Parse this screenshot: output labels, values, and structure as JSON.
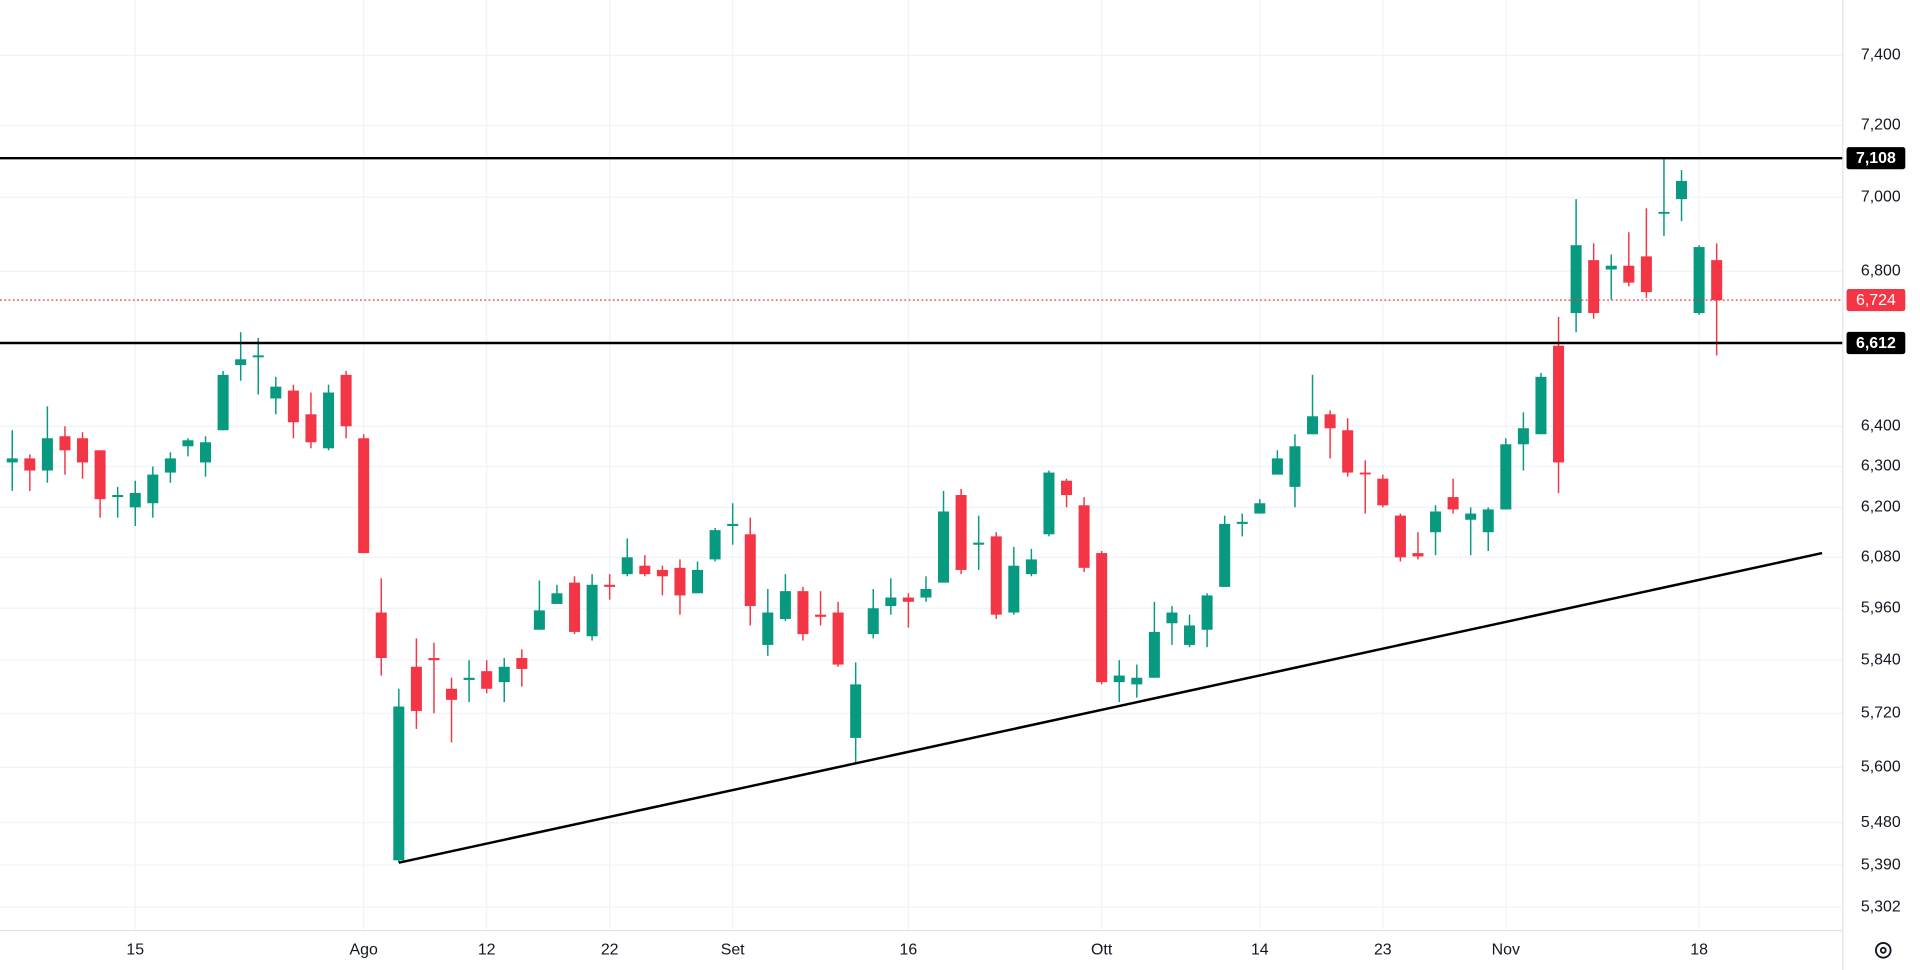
{
  "chart_data": {
    "type": "candlestick",
    "log": true,
    "grid": true,
    "up_color": "#089981",
    "down_color": "#f23645",
    "categories": [
      null,
      null,
      null,
      null,
      null,
      null,
      null,
      "15",
      null,
      null,
      null,
      null,
      null,
      null,
      null,
      null,
      null,
      null,
      null,
      null,
      "Ago",
      null,
      null,
      null,
      null,
      null,
      null,
      "12",
      null,
      null,
      null,
      null,
      null,
      null,
      "22",
      null,
      null,
      null,
      null,
      null,
      null,
      "Set",
      null,
      null,
      null,
      null,
      null,
      null,
      null,
      null,
      null,
      "16",
      null,
      null,
      null,
      null,
      null,
      null,
      null,
      null,
      null,
      null,
      "Ott",
      null,
      null,
      null,
      null,
      null,
      null,
      null,
      null,
      "14",
      null,
      null,
      null,
      null,
      null,
      null,
      "23",
      null,
      null,
      null,
      null,
      null,
      null,
      "Nov",
      null,
      null,
      null,
      null,
      null,
      null,
      null,
      null,
      null,
      null,
      "18",
      null
    ],
    "open": [
      6310,
      6320,
      6290,
      6375,
      6370,
      6340,
      6225,
      6200,
      6210,
      6285,
      6350,
      6310,
      6390,
      6555,
      6575,
      6470,
      6490,
      6430,
      6345,
      6530,
      6370,
      5950,
      5400,
      5825,
      5845,
      5775,
      5795,
      5815,
      5790,
      5845,
      5910,
      5970,
      6020,
      5895,
      6015,
      6040,
      6060,
      6050,
      6055,
      5995,
      6075,
      6155,
      6135,
      5875,
      5935,
      6000,
      5945,
      5950,
      5665,
      5900,
      5965,
      5985,
      5985,
      6020,
      6230,
      6110,
      6130,
      5950,
      6040,
      6135,
      6265,
      6205,
      6090,
      5790,
      5785,
      5800,
      5925,
      5875,
      5910,
      6010,
      6160,
      6185,
      6280,
      6250,
      6380,
      6430,
      6390,
      6285,
      6270,
      6180,
      6090,
      6140,
      6225,
      6170,
      6140,
      6195,
      6355,
      6380,
      6605,
      6690,
      6830,
      6805,
      6815,
      6840,
      6955,
      6995,
      6690,
      6830
    ],
    "high": [
      6390,
      6330,
      6450,
      6400,
      6385,
      6340,
      6250,
      6265,
      6300,
      6335,
      6370,
      6375,
      6540,
      6640,
      6625,
      6525,
      6505,
      6485,
      6505,
      6540,
      6380,
      6030,
      5775,
      5890,
      5880,
      5800,
      5840,
      5840,
      5845,
      5865,
      6025,
      6015,
      6035,
      6040,
      6040,
      6125,
      6085,
      6060,
      6075,
      6070,
      6150,
      6210,
      6175,
      6005,
      6040,
      6010,
      6000,
      5975,
      5835,
      6005,
      6030,
      5995,
      6035,
      6240,
      6245,
      6180,
      6140,
      6105,
      6100,
      6290,
      6270,
      6225,
      6095,
      5840,
      5830,
      5975,
      5965,
      5945,
      5995,
      6180,
      6185,
      6220,
      6340,
      6380,
      6530,
      6440,
      6420,
      6315,
      6280,
      6185,
      6140,
      6205,
      6270,
      6200,
      6200,
      6370,
      6435,
      6535,
      6680,
      6995,
      6875,
      6845,
      6905,
      6970,
      7108,
      7075,
      6870,
      6875
    ],
    "low": [
      6240,
      6240,
      6260,
      6280,
      6270,
      6175,
      6175,
      6155,
      6175,
      6260,
      6325,
      6275,
      6390,
      6515,
      6480,
      6430,
      6370,
      6345,
      6340,
      6370,
      6090,
      5805,
      5395,
      5685,
      5720,
      5655,
      5745,
      5765,
      5745,
      5780,
      5910,
      5970,
      5900,
      5885,
      5980,
      6035,
      6035,
      5990,
      5945,
      5995,
      6070,
      6110,
      5920,
      5850,
      5930,
      5885,
      5920,
      5825,
      5610,
      5890,
      5945,
      5915,
      5975,
      6020,
      6040,
      6050,
      5935,
      5945,
      6035,
      6130,
      6200,
      6045,
      5785,
      5745,
      5755,
      5800,
      5875,
      5870,
      5870,
      6010,
      6130,
      6185,
      6280,
      6200,
      6380,
      6320,
      6275,
      6185,
      6200,
      6070,
      6075,
      6085,
      6185,
      6085,
      6095,
      6195,
      6290,
      6380,
      6235,
      6640,
      6675,
      6725,
      6760,
      6730,
      6895,
      6935,
      6685,
      6580
    ],
    "close": [
      6320,
      6290,
      6370,
      6340,
      6310,
      6220,
      6230,
      6235,
      6280,
      6320,
      6365,
      6360,
      6530,
      6570,
      6580,
      6500,
      6410,
      6360,
      6485,
      6400,
      6090,
      5845,
      5735,
      5725,
      5840,
      5750,
      5800,
      5775,
      5825,
      5820,
      5955,
      5995,
      5905,
      6015,
      6010,
      6080,
      6040,
      6035,
      5990,
      6050,
      6145,
      6160,
      5965,
      5950,
      6000,
      5900,
      5940,
      5830,
      5785,
      5960,
      5985,
      5975,
      6005,
      6190,
      6050,
      6115,
      5945,
      6060,
      6075,
      6285,
      6230,
      6055,
      5790,
      5805,
      5800,
      5905,
      5950,
      5920,
      5990,
      6160,
      6165,
      6210,
      6320,
      6350,
      6425,
      6395,
      6285,
      6282,
      6205,
      6080,
      6082,
      6190,
      6195,
      6185,
      6195,
      6355,
      6395,
      6525,
      6310,
      6870,
      6690,
      6815,
      6770,
      6745,
      6960,
      7045,
      6865,
      6724
    ],
    "ylim": [
      5256,
      7562
    ],
    "yticks": [
      {
        "value": 5302,
        "label": "5,302"
      },
      {
        "value": 5390,
        "label": "5,390"
      },
      {
        "value": 5480,
        "label": "5,480"
      },
      {
        "value": 5600,
        "label": "5,600"
      },
      {
        "value": 5720,
        "label": "5,720"
      },
      {
        "value": 5840,
        "label": "5,840"
      },
      {
        "value": 5960,
        "label": "5,960"
      },
      {
        "value": 6080,
        "label": "6,080"
      },
      {
        "value": 6200,
        "label": "6,200"
      },
      {
        "value": 6300,
        "label": "6,300"
      },
      {
        "value": 6400,
        "label": "6,400"
      },
      {
        "value": 6800,
        "label": "6,800"
      },
      {
        "value": 7000,
        "label": "7,000"
      },
      {
        "value": 7200,
        "label": "7,200"
      },
      {
        "value": 7400,
        "label": "7,400"
      }
    ],
    "levels": [
      {
        "value": 7108,
        "label": "7,108",
        "color": "#000000"
      },
      {
        "value": 6612,
        "label": "6,612",
        "color": "#000000"
      }
    ],
    "last_price": {
      "value": 6724,
      "label": "6,724",
      "color": "#f23645"
    },
    "trendline": {
      "start": {
        "index": 22,
        "value": 5395
      },
      "end": {
        "index": 103,
        "value": 6090
      },
      "color": "#000000"
    }
  }
}
